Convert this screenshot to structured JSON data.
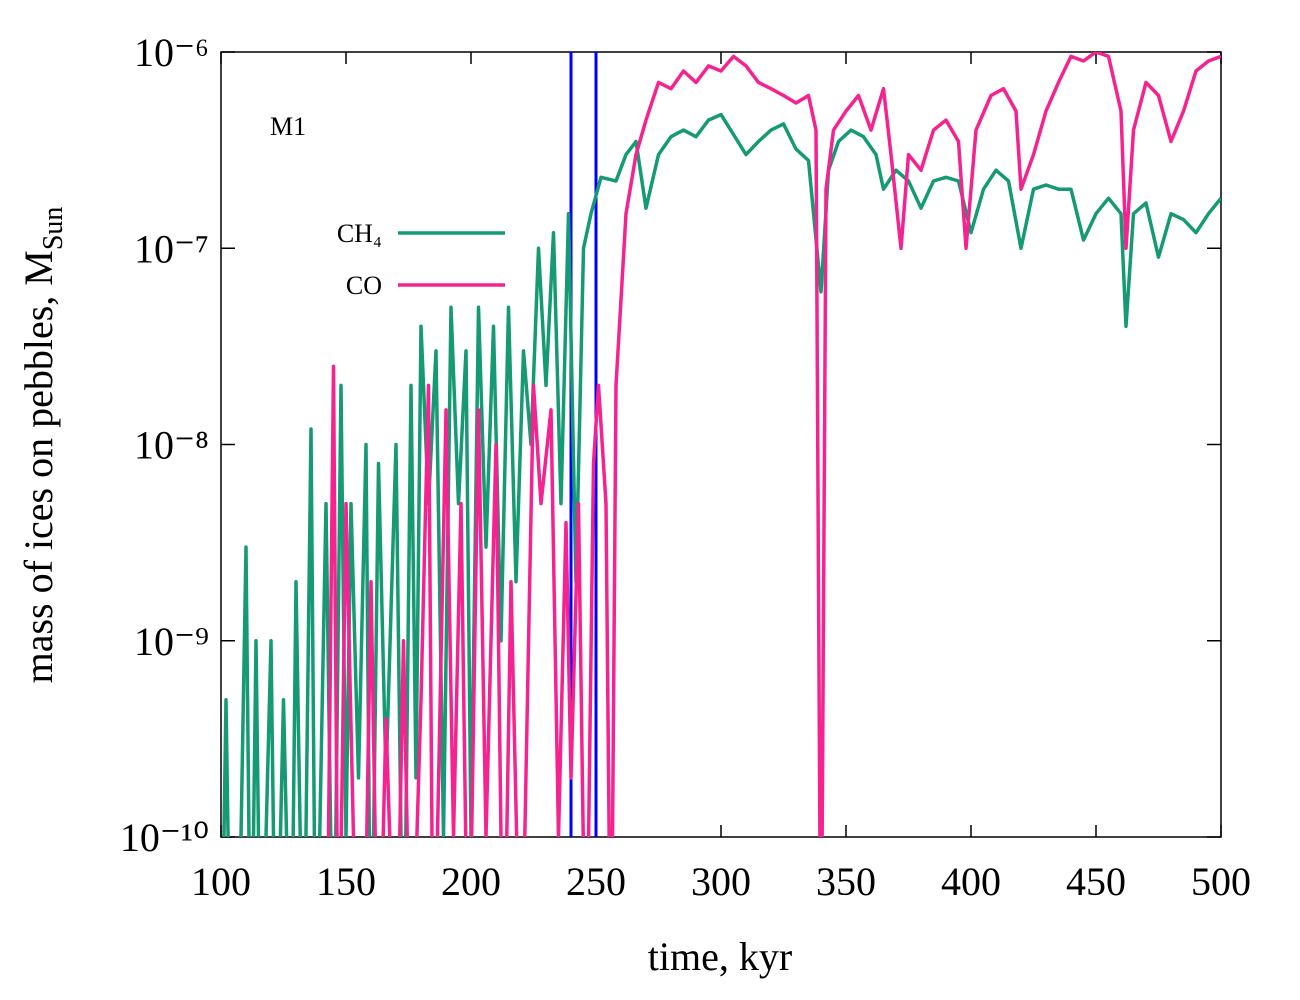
{
  "chart_data": {
    "type": "line",
    "xlabel": "time, kyr",
    "ylabel": {
      "text": "mass of ices on pebbles, M",
      "subscript": "Sun"
    },
    "annotation": "M1",
    "log_y": true,
    "xlim": [
      100,
      500
    ],
    "xticks": [
      100,
      150,
      200,
      250,
      300,
      350,
      400,
      450,
      500
    ],
    "ylim": [
      1e-10,
      1e-06
    ],
    "yticks": [
      {
        "value": 1e-10,
        "label": "10⁻¹⁰"
      },
      {
        "value": 1e-09,
        "label": "10⁻⁹"
      },
      {
        "value": 1e-08,
        "label": "10⁻⁸"
      },
      {
        "value": 1e-07,
        "label": "10⁻⁷"
      },
      {
        "value": 1e-06,
        "label": "10⁻⁶"
      }
    ],
    "vlines": [
      {
        "x": 240,
        "color": "#0000ff"
      },
      {
        "x": 250,
        "color": "#0000ff"
      }
    ],
    "series": [
      {
        "name": "CH₄",
        "color": "#159a74",
        "x": [
          100,
          102,
          104,
          108,
          110,
          112,
          114,
          116,
          120,
          122,
          125,
          128,
          130,
          133,
          136,
          138,
          142,
          145,
          148,
          150,
          152,
          155,
          158,
          160,
          163,
          166,
          170,
          173,
          176,
          178,
          180,
          183,
          186,
          189,
          192,
          195,
          198,
          200,
          203,
          206,
          209,
          212,
          215,
          218,
          221,
          224,
          227,
          230,
          233,
          236,
          239,
          242,
          245,
          248,
          252,
          258,
          262,
          266,
          270,
          275,
          280,
          285,
          290,
          295,
          300,
          305,
          310,
          315,
          320,
          325,
          330,
          335,
          340,
          343,
          347,
          352,
          357,
          362,
          365,
          370,
          375,
          380,
          385,
          390,
          395,
          400,
          405,
          410,
          415,
          420,
          425,
          430,
          435,
          440,
          445,
          450,
          455,
          460,
          462,
          465,
          470,
          475,
          480,
          485,
          490,
          495,
          500
        ],
        "values": [
          1e-11,
          5e-10,
          1e-11,
          1e-10,
          3e-09,
          1e-11,
          1e-09,
          1e-11,
          1e-09,
          1e-11,
          5e-10,
          1e-11,
          2e-09,
          1e-11,
          1.2e-08,
          1e-11,
          5e-09,
          1e-11,
          2e-08,
          1e-10,
          5e-09,
          2e-10,
          1e-08,
          1e-11,
          8e-09,
          2e-10,
          1e-08,
          1e-11,
          2e-08,
          2e-10,
          4e-08,
          5e-09,
          3e-08,
          1e-10,
          5e-08,
          5e-09,
          3e-08,
          1e-10,
          5e-08,
          3e-09,
          4e-08,
          1e-09,
          5e-08,
          2e-09,
          3e-08,
          1e-08,
          1e-07,
          2e-08,
          1.2e-07,
          5e-09,
          1.5e-07,
          2e-09,
          1e-07,
          1.5e-07,
          2.3e-07,
          2.2e-07,
          3e-07,
          3.5e-07,
          1.6e-07,
          3e-07,
          3.7e-07,
          4e-07,
          3.7e-07,
          4.5e-07,
          4.8e-07,
          3.8e-07,
          3e-07,
          3.5e-07,
          4e-07,
          4.3e-07,
          3.2e-07,
          2.8e-07,
          6e-08,
          2.5e-07,
          3.5e-07,
          4e-07,
          3.7e-07,
          3e-07,
          2e-07,
          2.5e-07,
          2.2e-07,
          1.6e-07,
          2.2e-07,
          2.3e-07,
          2.2e-07,
          1.2e-07,
          2e-07,
          2.5e-07,
          2.2e-07,
          1e-07,
          2e-07,
          2.1e-07,
          2e-07,
          2e-07,
          1.1e-07,
          1.5e-07,
          1.8e-07,
          1.5e-07,
          4e-08,
          1.5e-07,
          1.7e-07,
          9e-08,
          1.5e-07,
          1.4e-07,
          1.2e-07,
          1.5e-07,
          1.8e-07
        ]
      },
      {
        "name": "CO",
        "color": "#f5238f",
        "x": [
          140,
          143,
          145,
          147,
          150,
          153,
          157,
          160,
          163,
          166,
          170,
          173,
          176,
          180,
          183,
          185,
          190,
          193,
          196,
          199,
          203,
          206,
          210,
          213,
          216,
          220,
          225,
          228,
          232,
          235,
          238,
          240,
          243,
          246,
          249,
          251,
          254,
          256,
          258,
          262,
          266,
          270,
          275,
          280,
          285,
          290,
          295,
          300,
          305,
          310,
          315,
          320,
          325,
          330,
          335,
          338,
          340,
          342,
          345,
          350,
          355,
          360,
          365,
          368,
          372,
          375,
          380,
          385,
          390,
          395,
          398,
          402,
          408,
          413,
          418,
          420,
          425,
          430,
          435,
          440,
          445,
          450,
          455,
          460,
          462,
          465,
          470,
          475,
          480,
          485,
          490,
          495,
          500
        ],
        "values": [
          1e-11,
          1e-10,
          2.5e-08,
          1e-11,
          5e-09,
          1e-10,
          1e-11,
          2e-09,
          1e-11,
          4e-10,
          1e-11,
          1e-09,
          1e-11,
          5e-10,
          2e-08,
          1e-11,
          1.5e-08,
          1e-10,
          5e-09,
          1e-11,
          1.5e-08,
          1e-10,
          1e-08,
          1e-11,
          2e-09,
          1e-11,
          2e-08,
          5e-09,
          1.5e-08,
          1e-10,
          4e-09,
          2e-10,
          5e-09,
          1e-11,
          8e-09,
          2e-08,
          5e-09,
          1e-11,
          2e-08,
          1.5e-07,
          3e-07,
          4.5e-07,
          7e-07,
          6.5e-07,
          8e-07,
          7e-07,
          8.5e-07,
          8e-07,
          9.5e-07,
          8.5e-07,
          7e-07,
          6.5e-07,
          6e-07,
          5.5e-07,
          6e-07,
          4e-07,
          1e-11,
          2e-07,
          4e-07,
          5e-07,
          6e-07,
          4e-07,
          6.5e-07,
          3e-07,
          1e-07,
          3e-07,
          2.5e-07,
          4e-07,
          4.5e-07,
          3.5e-07,
          1e-07,
          4e-07,
          6e-07,
          6.5e-07,
          5e-07,
          2e-07,
          3e-07,
          5e-07,
          7e-07,
          9.5e-07,
          9e-07,
          1e-06,
          9.5e-07,
          5e-07,
          1e-07,
          4e-07,
          7e-07,
          6e-07,
          3.5e-07,
          5e-07,
          8e-07,
          9e-07,
          9.5e-07
        ]
      }
    ]
  }
}
